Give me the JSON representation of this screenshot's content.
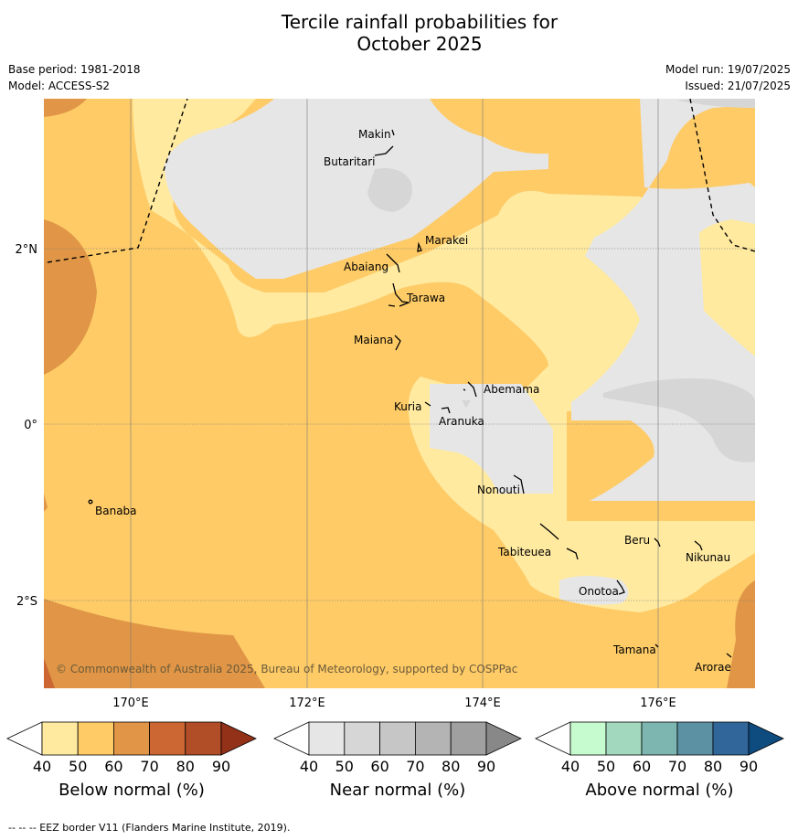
{
  "title_line1": "Tercile rainfall probabilities for",
  "title_line2": "October 2025",
  "base_period": "Base period: 1981-2018",
  "model": "Model: ACCESS-S2",
  "model_run": "Model run: 19/07/2025",
  "issued": "Issued: 21/07/2025",
  "copyright": "© Commonwealth of Australia 2025, Bureau of Meteorology, supported by COSPPac",
  "footer": "--  --  -- EEZ border V11 (Flanders Marine Institute, 2019).",
  "lon_labels": [
    "170°E",
    "172°E",
    "174°E",
    "176°E"
  ],
  "lat_labels": [
    "2°N",
    "0°",
    "2°S"
  ],
  "places": [
    "Makin",
    "Butaritari",
    "Marakei",
    "Abaiang",
    "Tarawa",
    "Maiana",
    "Abemama",
    "Kuria",
    "Aranuka",
    "Nonouti",
    "Banaba",
    "Tabiteuea",
    "Beru",
    "Nikunau",
    "Onotoa",
    "Tamana",
    "Arorae"
  ],
  "colorbars": [
    {
      "title": "Below normal (%)",
      "ticks": [
        "40",
        "50",
        "60",
        "70",
        "80",
        "90"
      ],
      "colors": [
        "#ffffff",
        "#ffeaa0",
        "#fecb67",
        "#e09646",
        "#cc6633",
        "#b14d27",
        "#923118"
      ]
    },
    {
      "title": "Near normal (%)",
      "ticks": [
        "40",
        "50",
        "60",
        "70",
        "80",
        "90"
      ],
      "colors": [
        "#ffffff",
        "#e6e6e6",
        "#d6d6d6",
        "#c6c6c6",
        "#b4b4b4",
        "#a0a0a0",
        "#888888"
      ]
    },
    {
      "title": "Above normal (%)",
      "ticks": [
        "40",
        "50",
        "60",
        "70",
        "80",
        "90"
      ],
      "colors": [
        "#ffffff",
        "#c6fbcf",
        "#a2d8bd",
        "#7db6b1",
        "#5b91a3",
        "#306699",
        "#0e4c80"
      ]
    }
  ]
}
